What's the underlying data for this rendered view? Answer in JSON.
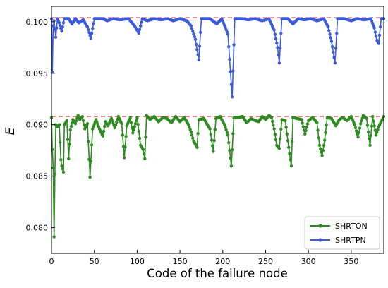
{
  "chart_data": {
    "type": "line",
    "title": "",
    "xlabel": "Code of the failure node",
    "ylabel": "E",
    "xlim": [
      0,
      388
    ],
    "ylim": [
      0.0775,
      0.1015
    ],
    "xticks": [
      0,
      50,
      100,
      150,
      200,
      250,
      300,
      350
    ],
    "yticks": [
      0.08,
      0.085,
      0.09,
      0.095,
      0.1
    ],
    "ytick_labels": [
      "0.080",
      "0.085",
      "0.090",
      "0.095",
      "0.100"
    ],
    "legend": "lower-right",
    "grid": false,
    "reference_lines": [
      {
        "series": "SHRTPN",
        "y": 0.1004,
        "color": "#e03030",
        "style": "dashed"
      },
      {
        "series": "SHRTON",
        "y": 0.0908,
        "color": "#e03030",
        "style": "dashed"
      }
    ],
    "series": [
      {
        "name": "SHRTPN",
        "color": "#3b5bdb",
        "anchors": [
          [
            0,
            0.1003
          ],
          [
            1,
            0.0951
          ],
          [
            2,
            0.0996
          ],
          [
            3,
            0.1001
          ],
          [
            5,
            0.0985
          ],
          [
            7,
            0.1003
          ],
          [
            9,
            0.0999
          ],
          [
            12,
            0.0991
          ],
          [
            15,
            0.1003
          ],
          [
            20,
            0.1003
          ],
          [
            24,
            0.0998
          ],
          [
            28,
            0.1003
          ],
          [
            32,
            0.0999
          ],
          [
            37,
            0.1002
          ],
          [
            42,
            0.0995
          ],
          [
            46,
            0.0984
          ],
          [
            50,
            0.1003
          ],
          [
            60,
            0.1003
          ],
          [
            65,
            0.1001
          ],
          [
            72,
            0.1003
          ],
          [
            80,
            0.1002
          ],
          [
            90,
            0.1003
          ],
          [
            97,
            0.0996
          ],
          [
            102,
            0.0989
          ],
          [
            106,
            0.1003
          ],
          [
            112,
            0.1001
          ],
          [
            120,
            0.1003
          ],
          [
            128,
            0.1002
          ],
          [
            136,
            0.1003
          ],
          [
            142,
            0.1001
          ],
          [
            150,
            0.1003
          ],
          [
            158,
            0.1001
          ],
          [
            163,
            0.0996
          ],
          [
            168,
            0.0983
          ],
          [
            172,
            0.0963
          ],
          [
            175,
            0.1003
          ],
          [
            185,
            0.1003
          ],
          [
            193,
            0.0998
          ],
          [
            199,
            0.1003
          ],
          [
            206,
            0.0988
          ],
          [
            211,
            0.0927
          ],
          [
            214,
            0.1003
          ],
          [
            222,
            0.1003
          ],
          [
            230,
            0.1002
          ],
          [
            238,
            0.1003
          ],
          [
            246,
            0.1001
          ],
          [
            254,
            0.1003
          ],
          [
            260,
            0.0992
          ],
          [
            264,
            0.0975
          ],
          [
            266,
            0.096
          ],
          [
            269,
            0.1003
          ],
          [
            276,
            0.1003
          ],
          [
            282,
            0.0998
          ],
          [
            288,
            0.1003
          ],
          [
            295,
            0.1002
          ],
          [
            303,
            0.1003
          ],
          [
            310,
            0.1001
          ],
          [
            318,
            0.1003
          ],
          [
            323,
            0.0995
          ],
          [
            327,
            0.0981
          ],
          [
            331,
            0.096
          ],
          [
            334,
            0.1003
          ],
          [
            342,
            0.1003
          ],
          [
            350,
            0.1001
          ],
          [
            357,
            0.1003
          ],
          [
            365,
            0.1002
          ],
          [
            373,
            0.1003
          ],
          [
            377,
            0.0994
          ],
          [
            380,
            0.0982
          ],
          [
            382,
            0.0979
          ],
          [
            385,
            0.1003
          ],
          [
            388,
            0.1003
          ]
        ]
      },
      {
        "name": "SHRTON",
        "color": "#2e8b22",
        "anchors": [
          [
            0,
            0.0907
          ],
          [
            1,
            0.0876
          ],
          [
            2,
            0.0858
          ],
          [
            3,
            0.0791
          ],
          [
            4,
            0.0852
          ],
          [
            5,
            0.09
          ],
          [
            7,
            0.0898
          ],
          [
            9,
            0.09
          ],
          [
            11,
            0.0866
          ],
          [
            12,
            0.086
          ],
          [
            14,
            0.0854
          ],
          [
            15,
            0.09
          ],
          [
            18,
            0.0904
          ],
          [
            20,
            0.0867
          ],
          [
            22,
            0.0895
          ],
          [
            25,
            0.0905
          ],
          [
            28,
            0.0901
          ],
          [
            31,
            0.0909
          ],
          [
            33,
            0.0905
          ],
          [
            36,
            0.0908
          ],
          [
            39,
            0.0896
          ],
          [
            42,
            0.0901
          ],
          [
            45,
            0.0849
          ],
          [
            48,
            0.0896
          ],
          [
            52,
            0.0905
          ],
          [
            56,
            0.0896
          ],
          [
            60,
            0.0889
          ],
          [
            63,
            0.0903
          ],
          [
            66,
            0.0899
          ],
          [
            70,
            0.0906
          ],
          [
            74,
            0.0897
          ],
          [
            78,
            0.0908
          ],
          [
            82,
            0.0901
          ],
          [
            85,
            0.0868
          ],
          [
            88,
            0.0899
          ],
          [
            92,
            0.0907
          ],
          [
            95,
            0.0892
          ],
          [
            100,
            0.0907
          ],
          [
            104,
            0.088
          ],
          [
            107,
            0.0876
          ],
          [
            109,
            0.0867
          ],
          [
            111,
            0.0909
          ],
          [
            115,
            0.0905
          ],
          [
            120,
            0.0908
          ],
          [
            125,
            0.0903
          ],
          [
            130,
            0.0907
          ],
          [
            135,
            0.0906
          ],
          [
            140,
            0.0902
          ],
          [
            145,
            0.0908
          ],
          [
            150,
            0.0903
          ],
          [
            155,
            0.0907
          ],
          [
            160,
            0.09
          ],
          [
            163,
            0.0893
          ],
          [
            166,
            0.0884
          ],
          [
            170,
            0.0878
          ],
          [
            172,
            0.0905
          ],
          [
            178,
            0.0906
          ],
          [
            182,
            0.09
          ],
          [
            185,
            0.0896
          ],
          [
            189,
            0.0874
          ],
          [
            192,
            0.0906
          ],
          [
            197,
            0.0908
          ],
          [
            202,
            0.09
          ],
          [
            206,
            0.089
          ],
          [
            210,
            0.086
          ],
          [
            213,
            0.0907
          ],
          [
            218,
            0.0907
          ],
          [
            223,
            0.0908
          ],
          [
            228,
            0.0902
          ],
          [
            233,
            0.0906
          ],
          [
            238,
            0.0904
          ],
          [
            242,
            0.0903
          ],
          [
            246,
            0.0908
          ],
          [
            250,
            0.0905
          ],
          [
            254,
            0.0909
          ],
          [
            257,
            0.0907
          ],
          [
            260,
            0.0896
          ],
          [
            263,
            0.088
          ],
          [
            266,
            0.0877
          ],
          [
            269,
            0.0905
          ],
          [
            273,
            0.0904
          ],
          [
            277,
            0.0878
          ],
          [
            280,
            0.086
          ],
          [
            282,
            0.0907
          ],
          [
            287,
            0.0906
          ],
          [
            292,
            0.0905
          ],
          [
            296,
            0.0891
          ],
          [
            300,
            0.0904
          ],
          [
            305,
            0.0907
          ],
          [
            310,
            0.0902
          ],
          [
            313,
            0.088
          ],
          [
            316,
            0.087
          ],
          [
            319,
            0.0885
          ],
          [
            322,
            0.0907
          ],
          [
            327,
            0.0906
          ],
          [
            332,
            0.0899
          ],
          [
            336,
            0.0905
          ],
          [
            340,
            0.0907
          ],
          [
            345,
            0.0904
          ],
          [
            350,
            0.0908
          ],
          [
            354,
            0.09
          ],
          [
            358,
            0.0888
          ],
          [
            361,
            0.0901
          ],
          [
            364,
            0.0909
          ],
          [
            368,
            0.0906
          ],
          [
            372,
            0.088
          ],
          [
            375,
            0.0908
          ],
          [
            379,
            0.089
          ],
          [
            382,
            0.0898
          ],
          [
            385,
            0.0903
          ],
          [
            388,
            0.0908
          ]
        ]
      }
    ]
  }
}
